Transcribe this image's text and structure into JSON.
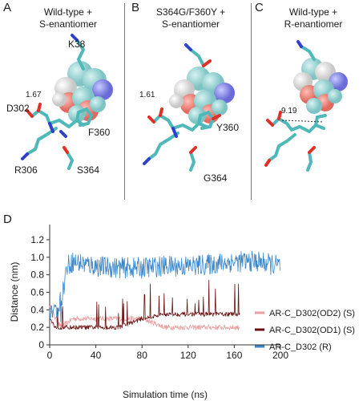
{
  "panels": [
    {
      "letter": "A",
      "title_line1": "Wild-type +",
      "title_line2": "S-enantiomer",
      "labels": {
        "k38": "K38",
        "d302": "D302",
        "f360": "F360",
        "r306": "R306",
        "s364": "S364"
      },
      "distance": "1.67"
    },
    {
      "letter": "B",
      "title_line1": "S364G/F360Y +",
      "title_line2": "S-enantiomer",
      "labels": {
        "y360": "Y360",
        "g364": "G364"
      },
      "distance": "1.61"
    },
    {
      "letter": "C",
      "title_line1": "Wild-type +",
      "title_line2": "R-enantiomer",
      "distance": "9.19"
    }
  ],
  "panel_d_letter": "D",
  "colors": {
    "carbon": "#4fb8b8",
    "oxygen": "#e0302a",
    "nitrogen": "#3040c8",
    "hydrogen": "#ffffff",
    "series_od2": "#e8a0a0",
    "series_od1": "#6a1010",
    "series_r": "#3a86c8"
  },
  "chart_data": {
    "type": "line",
    "xlabel": "Simulation time (ns)",
    "ylabel": "Distance (nm)",
    "xlim": [
      0,
      200
    ],
    "ylim": [
      0,
      1.3
    ],
    "xticks": [
      0,
      40,
      80,
      120,
      160,
      200
    ],
    "yticks": [
      0,
      0.2,
      0.4,
      0.6,
      0.8,
      1.0,
      1.2
    ],
    "ytick_labels": [
      "0",
      "0.2",
      "0.4",
      "0.6",
      "0.8",
      "1.0",
      "1.2"
    ],
    "legend_position": "right",
    "series": [
      {
        "name": "AR-C_D302(OD2) (S)",
        "color": "#e8a0a0",
        "x": [
          0,
          5,
          10,
          20,
          40,
          60,
          80,
          100,
          120,
          140,
          160,
          165
        ],
        "y": [
          0.45,
          0.3,
          0.2,
          0.3,
          0.3,
          0.3,
          0.3,
          0.2,
          0.2,
          0.2,
          0.2,
          0.2
        ]
      },
      {
        "name": "AR-C_D302(OD1) (S)",
        "color": "#6a1010",
        "x": [
          0,
          5,
          10,
          20,
          40,
          60,
          80,
          100,
          120,
          140,
          160,
          165
        ],
        "y": [
          0.3,
          0.2,
          0.2,
          0.2,
          0.2,
          0.2,
          0.3,
          0.35,
          0.35,
          0.35,
          0.35,
          0.35
        ]
      },
      {
        "name": "AR-C_D302 (R)",
        "color": "#3a86c8",
        "x": [
          0,
          5,
          10,
          15,
          20,
          40,
          60,
          80,
          100,
          120,
          140,
          160,
          180,
          200
        ],
        "y": [
          0.4,
          0.38,
          0.5,
          0.9,
          0.95,
          0.9,
          0.88,
          0.88,
          0.9,
          0.9,
          0.92,
          0.95,
          0.95,
          0.9
        ]
      }
    ]
  }
}
